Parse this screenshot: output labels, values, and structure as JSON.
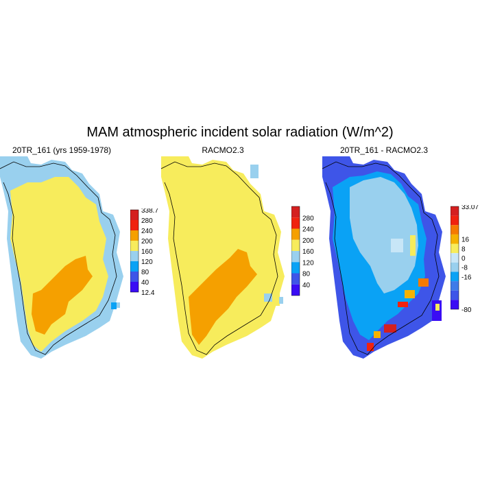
{
  "title": "MAM atmospheric incident solar radiation (W/m^2)",
  "chart_data": [
    {
      "type": "heatmap",
      "title": "20TR_161 (yrs 1959-1978)",
      "colorbar": {
        "top_label": "338.7",
        "bottom_label": "12.4",
        "levels": [
          "280",
          "240",
          "200",
          "160",
          "120",
          "80",
          "40"
        ],
        "colors": [
          "#d42020",
          "#f0220f",
          "#f5a000",
          "#f7ec5c",
          "#99d0ee",
          "#0aa2f5",
          "#3e55e8",
          "#3a0cf4"
        ]
      },
      "field_summary": {
        "interior": "160-200",
        "southwest_band": "200-240",
        "coast": "120-160"
      }
    },
    {
      "type": "heatmap",
      "title": "RACMO2.3",
      "colorbar": {
        "top_label": "",
        "bottom_label": "",
        "levels": [
          "280",
          "240",
          "200",
          "160",
          "120",
          "80",
          "40"
        ],
        "colors": [
          "#d42020",
          "#f0220f",
          "#f5a000",
          "#f7ec5c",
          "#99d0ee",
          "#0aa2f5",
          "#3e55e8",
          "#3a0cf4"
        ]
      },
      "field_summary": {
        "interior": "160-200",
        "southwest_band": "200-240",
        "coast": "160-200"
      }
    },
    {
      "type": "heatmap",
      "title": "20TR_161 - RACMO2.3",
      "colorbar": {
        "top_label": "33.07",
        "bottom_label": "-80",
        "levels": [
          "16",
          "8",
          "0",
          "-8",
          "-16"
        ],
        "colors": [
          "#d42020",
          "#f0220f",
          "#f57a00",
          "#f5b200",
          "#f7ec5c",
          "#c8e6f7",
          "#99d0ee",
          "#0aa2f5",
          "#3e7be8",
          "#3e55e8",
          "#3a0cf4"
        ]
      },
      "field_summary": {
        "interior": "-16 to -8",
        "southeast_coast": "8 to 33.07",
        "southwest_coast": "-80 to -16"
      }
    }
  ]
}
